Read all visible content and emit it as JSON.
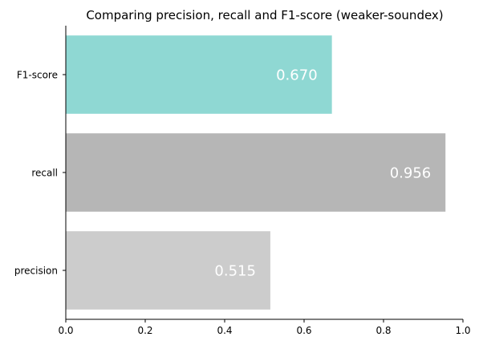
{
  "chart_data": {
    "type": "bar",
    "orientation": "horizontal",
    "title": "Comparing precision, recall and F1-score (weaker-soundex)",
    "xlabel": "",
    "ylabel": "",
    "categories": [
      "precision",
      "recall",
      "F1-score"
    ],
    "values": [
      0.515,
      0.956,
      0.67
    ],
    "value_labels": [
      "0.515",
      "0.956",
      "0.670"
    ],
    "bar_colors": [
      "#cccccc",
      "#b6b6b6",
      "#8fd8d3"
    ],
    "label_color": "#ffffff",
    "xlim": [
      0,
      1.0
    ],
    "xticks": [
      0,
      0.2,
      0.4,
      0.6,
      0.8,
      1.0
    ],
    "xtick_labels": [
      "0.0",
      "0.2",
      "0.4",
      "0.6",
      "0.8",
      "1.0"
    ],
    "grid": false,
    "spines": [
      "left",
      "bottom"
    ]
  }
}
